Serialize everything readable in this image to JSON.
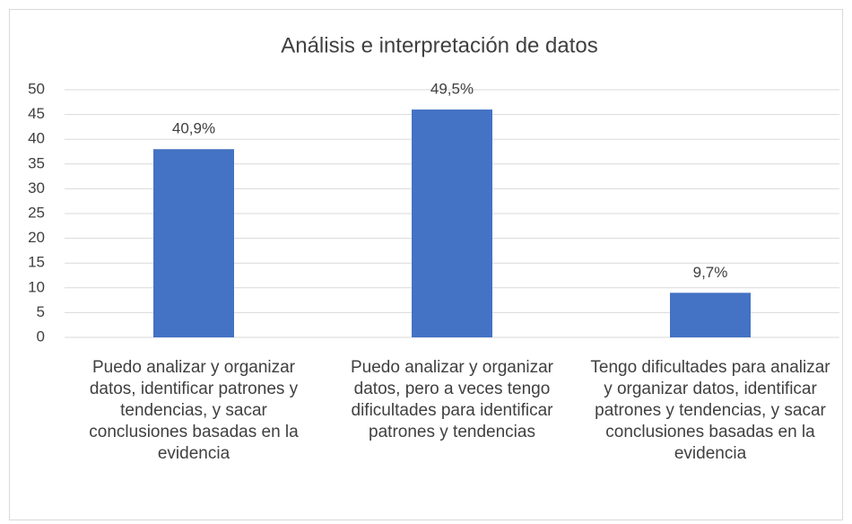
{
  "chart_data": {
    "type": "bar",
    "title": "Análisis e interpretación de datos",
    "categories": [
      "Puedo analizar y organizar datos, identificar patrones y tendencias, y sacar conclusiones basadas en la evidencia",
      "Puedo analizar y organizar datos, pero a veces tengo dificultades para identificar patrones y tendencias",
      "Tengo dificultades para analizar y organizar datos, identificar patrones y tendencias, y sacar conclusiones basadas en la evidencia"
    ],
    "values": [
      38,
      46,
      9
    ],
    "value_labels": [
      "40,9%",
      "49,5%",
      "9,7%"
    ],
    "color": "#4472c4",
    "ylim": [
      0,
      50
    ],
    "yticks": [
      0,
      5,
      10,
      15,
      20,
      25,
      30,
      35,
      40,
      45,
      50
    ],
    "grid": true
  }
}
